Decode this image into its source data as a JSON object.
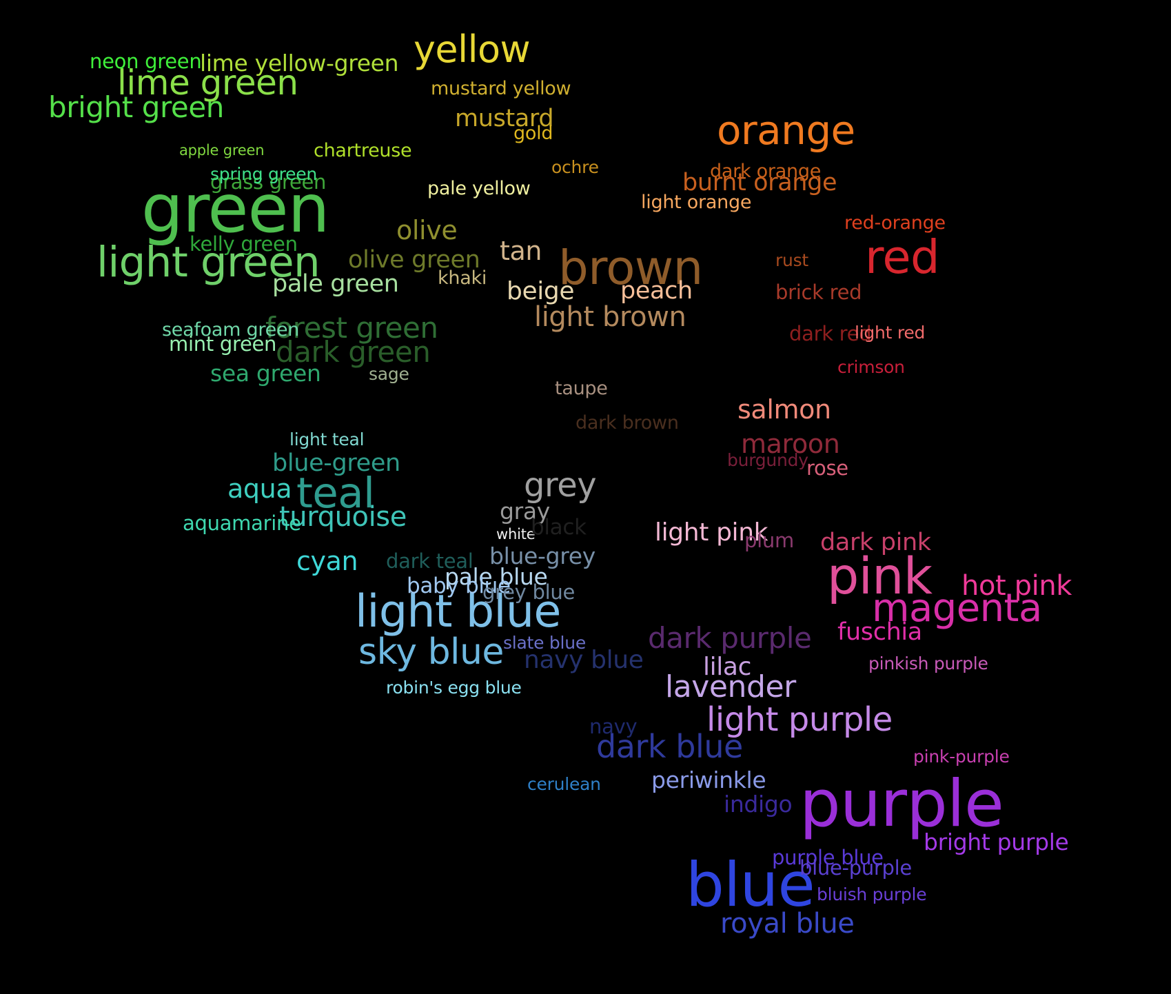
{
  "background": "#000000",
  "words": [
    {
      "text": "green",
      "color": "#4fbf4f",
      "size": 1.0
    },
    {
      "text": "purple",
      "color": "#9a2fd8",
      "size": 0.98
    },
    {
      "text": "blue",
      "color": "#2f45e0",
      "size": 0.92
    },
    {
      "text": "pink",
      "color": "#e0509a",
      "size": 0.76
    },
    {
      "text": "brown",
      "color": "#8f5c2a",
      "size": 0.72
    },
    {
      "text": "red",
      "color": "#d8262e",
      "size": 0.7
    },
    {
      "text": "light blue",
      "color": "#7fc0e8",
      "size": 0.68
    },
    {
      "text": "light green",
      "color": "#6fd06a",
      "size": 0.64
    },
    {
      "text": "teal",
      "color": "#2f9c8f",
      "size": 0.64
    },
    {
      "text": "orange",
      "color": "#f07a20",
      "size": 0.6
    },
    {
      "text": "magenta",
      "color": "#d82fa8",
      "size": 0.58
    },
    {
      "text": "yellow",
      "color": "#e8d836",
      "size": 0.56
    },
    {
      "text": "sky blue",
      "color": "#6eb8e0",
      "size": 0.54
    },
    {
      "text": "lime green",
      "color": "#8be04a",
      "size": 0.52
    },
    {
      "text": "light purple",
      "color": "#c58ae8",
      "size": 0.5
    },
    {
      "text": "grey",
      "color": "#a0a0a0",
      "size": 0.5
    },
    {
      "text": "dark blue",
      "color": "#2f3a9c",
      "size": 0.48
    },
    {
      "text": "lavender",
      "color": "#c4a6e8",
      "size": 0.46
    },
    {
      "text": "forest green",
      "color": "#2f6e35",
      "size": 0.44
    },
    {
      "text": "dark green",
      "color": "#2a5e2a",
      "size": 0.44
    },
    {
      "text": "bright green",
      "color": "#55e04a",
      "size": 0.44
    },
    {
      "text": "dark purple",
      "color": "#5a2a6e",
      "size": 0.44
    },
    {
      "text": "turquoise",
      "color": "#3fc4b8",
      "size": 0.42
    },
    {
      "text": "royal blue",
      "color": "#3a4ac8",
      "size": 0.42
    },
    {
      "text": "hot pink",
      "color": "#f03a9a",
      "size": 0.42
    },
    {
      "text": "light brown",
      "color": "#b48a5e",
      "size": 0.42
    },
    {
      "text": "olive",
      "color": "#8f8f2f",
      "size": 0.4
    },
    {
      "text": "cyan",
      "color": "#3fd8d8",
      "size": 0.4
    },
    {
      "text": "salmon",
      "color": "#f08a7a",
      "size": 0.4
    },
    {
      "text": "maroon",
      "color": "#8f2a3a",
      "size": 0.4
    },
    {
      "text": "aqua",
      "color": "#3fd0c0",
      "size": 0.4
    },
    {
      "text": "tan",
      "color": "#d2b48c",
      "size": 0.4
    },
    {
      "text": "navy blue",
      "color": "#25326e",
      "size": 0.38
    },
    {
      "text": "light pink",
      "color": "#f4b8d4",
      "size": 0.38
    },
    {
      "text": "lilac",
      "color": "#c8a0e0",
      "size": 0.38
    },
    {
      "text": "beige",
      "color": "#e8d8b0",
      "size": 0.38
    },
    {
      "text": "mustard",
      "color": "#c8a82a",
      "size": 0.36
    },
    {
      "text": "burnt orange",
      "color": "#c8601f",
      "size": 0.36
    },
    {
      "text": "peach",
      "color": "#f8c09a",
      "size": 0.36
    },
    {
      "text": "dark pink",
      "color": "#c8406a",
      "size": 0.36
    },
    {
      "text": "blue-green",
      "color": "#2f9c8a",
      "size": 0.36
    },
    {
      "text": "pale green",
      "color": "#a8e0a0",
      "size": 0.36
    },
    {
      "text": "olive green",
      "color": "#6e7a2a",
      "size": 0.36
    },
    {
      "text": "fuschia",
      "color": "#e02fa8",
      "size": 0.36
    },
    {
      "text": "lime yellow-green",
      "color": "#b0e03a",
      "size": 0.34
    },
    {
      "text": "gray",
      "color": "#9a9a9a",
      "size": 0.34
    },
    {
      "text": "periwinkle",
      "color": "#8a9ae8",
      "size": 0.34
    },
    {
      "text": "sea green",
      "color": "#2fa86e",
      "size": 0.34
    },
    {
      "text": "bright purple",
      "color": "#a43ae8",
      "size": 0.34
    },
    {
      "text": "pale blue",
      "color": "#b8d8f0",
      "size": 0.34
    },
    {
      "text": "indigo",
      "color": "#3a2a9c",
      "size": 0.34
    },
    {
      "text": "blue-grey",
      "color": "#7890a8",
      "size": 0.34
    },
    {
      "text": "baby blue",
      "color": "#a0c8f0",
      "size": 0.32
    },
    {
      "text": "purple blue",
      "color": "#5a3ad8",
      "size": 0.3
    },
    {
      "text": "blue-purple",
      "color": "#5a40d0",
      "size": 0.3
    },
    {
      "text": "plum",
      "color": "#8a3a6e",
      "size": 0.3
    },
    {
      "text": "dark red",
      "color": "#8f1f1f",
      "size": 0.3
    },
    {
      "text": "rose",
      "color": "#d8607a",
      "size": 0.3
    },
    {
      "text": "navy",
      "color": "#1f2a6e",
      "size": 0.3
    },
    {
      "text": "aquamarine",
      "color": "#3fd8b0",
      "size": 0.3
    },
    {
      "text": "neon green",
      "color": "#3ff03a",
      "size": 0.3
    },
    {
      "text": "mint green",
      "color": "#98f0b0",
      "size": 0.3
    },
    {
      "text": "kelly green",
      "color": "#2fa83a",
      "size": 0.3
    },
    {
      "text": "grass green",
      "color": "#3fa83a",
      "size": 0.3
    },
    {
      "text": "dark teal",
      "color": "#1f5e5a",
      "size": 0.3
    },
    {
      "text": "grey blue",
      "color": "#7088a0",
      "size": 0.3
    },
    {
      "text": "brick red",
      "color": "#a83a2a",
      "size": 0.3
    },
    {
      "text": "pale yellow",
      "color": "#f0f0a0",
      "size": 0.28
    },
    {
      "text": "gold",
      "color": "#e0b81f",
      "size": 0.28
    },
    {
      "text": "mustard yellow",
      "color": "#d0b030",
      "size": 0.28
    },
    {
      "text": "dark orange",
      "color": "#c8601a",
      "size": 0.28
    },
    {
      "text": "light orange",
      "color": "#f8a860",
      "size": 0.28
    },
    {
      "text": "red-orange",
      "color": "#e0401f",
      "size": 0.28
    },
    {
      "text": "seafoam green",
      "color": "#70d8a8",
      "size": 0.28
    },
    {
      "text": "chartreuse",
      "color": "#b0e02a",
      "size": 0.28
    },
    {
      "text": "khaki",
      "color": "#c8b880",
      "size": 0.28
    },
    {
      "text": "taupe",
      "color": "#a89080",
      "size": 0.28
    },
    {
      "text": "dark brown",
      "color": "#4a2f1f",
      "size": 0.28
    },
    {
      "text": "sage",
      "color": "#a0b090",
      "size": 0.26
    },
    {
      "text": "burgundy",
      "color": "#7a1f3a",
      "size": 0.26
    },
    {
      "text": "light teal",
      "color": "#80d8d0",
      "size": 0.26
    },
    {
      "text": "cerulean",
      "color": "#2f80c8",
      "size": 0.26
    },
    {
      "text": "crimson",
      "color": "#c81f3a",
      "size": 0.26
    },
    {
      "text": "rust",
      "color": "#a84a1f",
      "size": 0.26
    },
    {
      "text": "ochre",
      "color": "#c8901f",
      "size": 0.26
    },
    {
      "text": "light red",
      "color": "#f06a6a",
      "size": 0.26
    },
    {
      "text": "pink-purple",
      "color": "#c840b0",
      "size": 0.26
    },
    {
      "text": "bluish purple",
      "color": "#6a40d8",
      "size": 0.26
    },
    {
      "text": "pinkish purple",
      "color": "#c85ab8",
      "size": 0.26
    },
    {
      "text": "robin's egg blue",
      "color": "#8ae0f0",
      "size": 0.26
    },
    {
      "text": "slate blue",
      "color": "#6a70c8",
      "size": 0.26
    },
    {
      "text": "spring green",
      "color": "#3fe08a",
      "size": 0.26
    },
    {
      "text": "apple green",
      "color": "#80d840",
      "size": 0.22
    },
    {
      "text": "white",
      "color": "#f0f0f0",
      "size": 0.22
    },
    {
      "text": "black",
      "color": "#202020",
      "size": 0.32
    }
  ]
}
